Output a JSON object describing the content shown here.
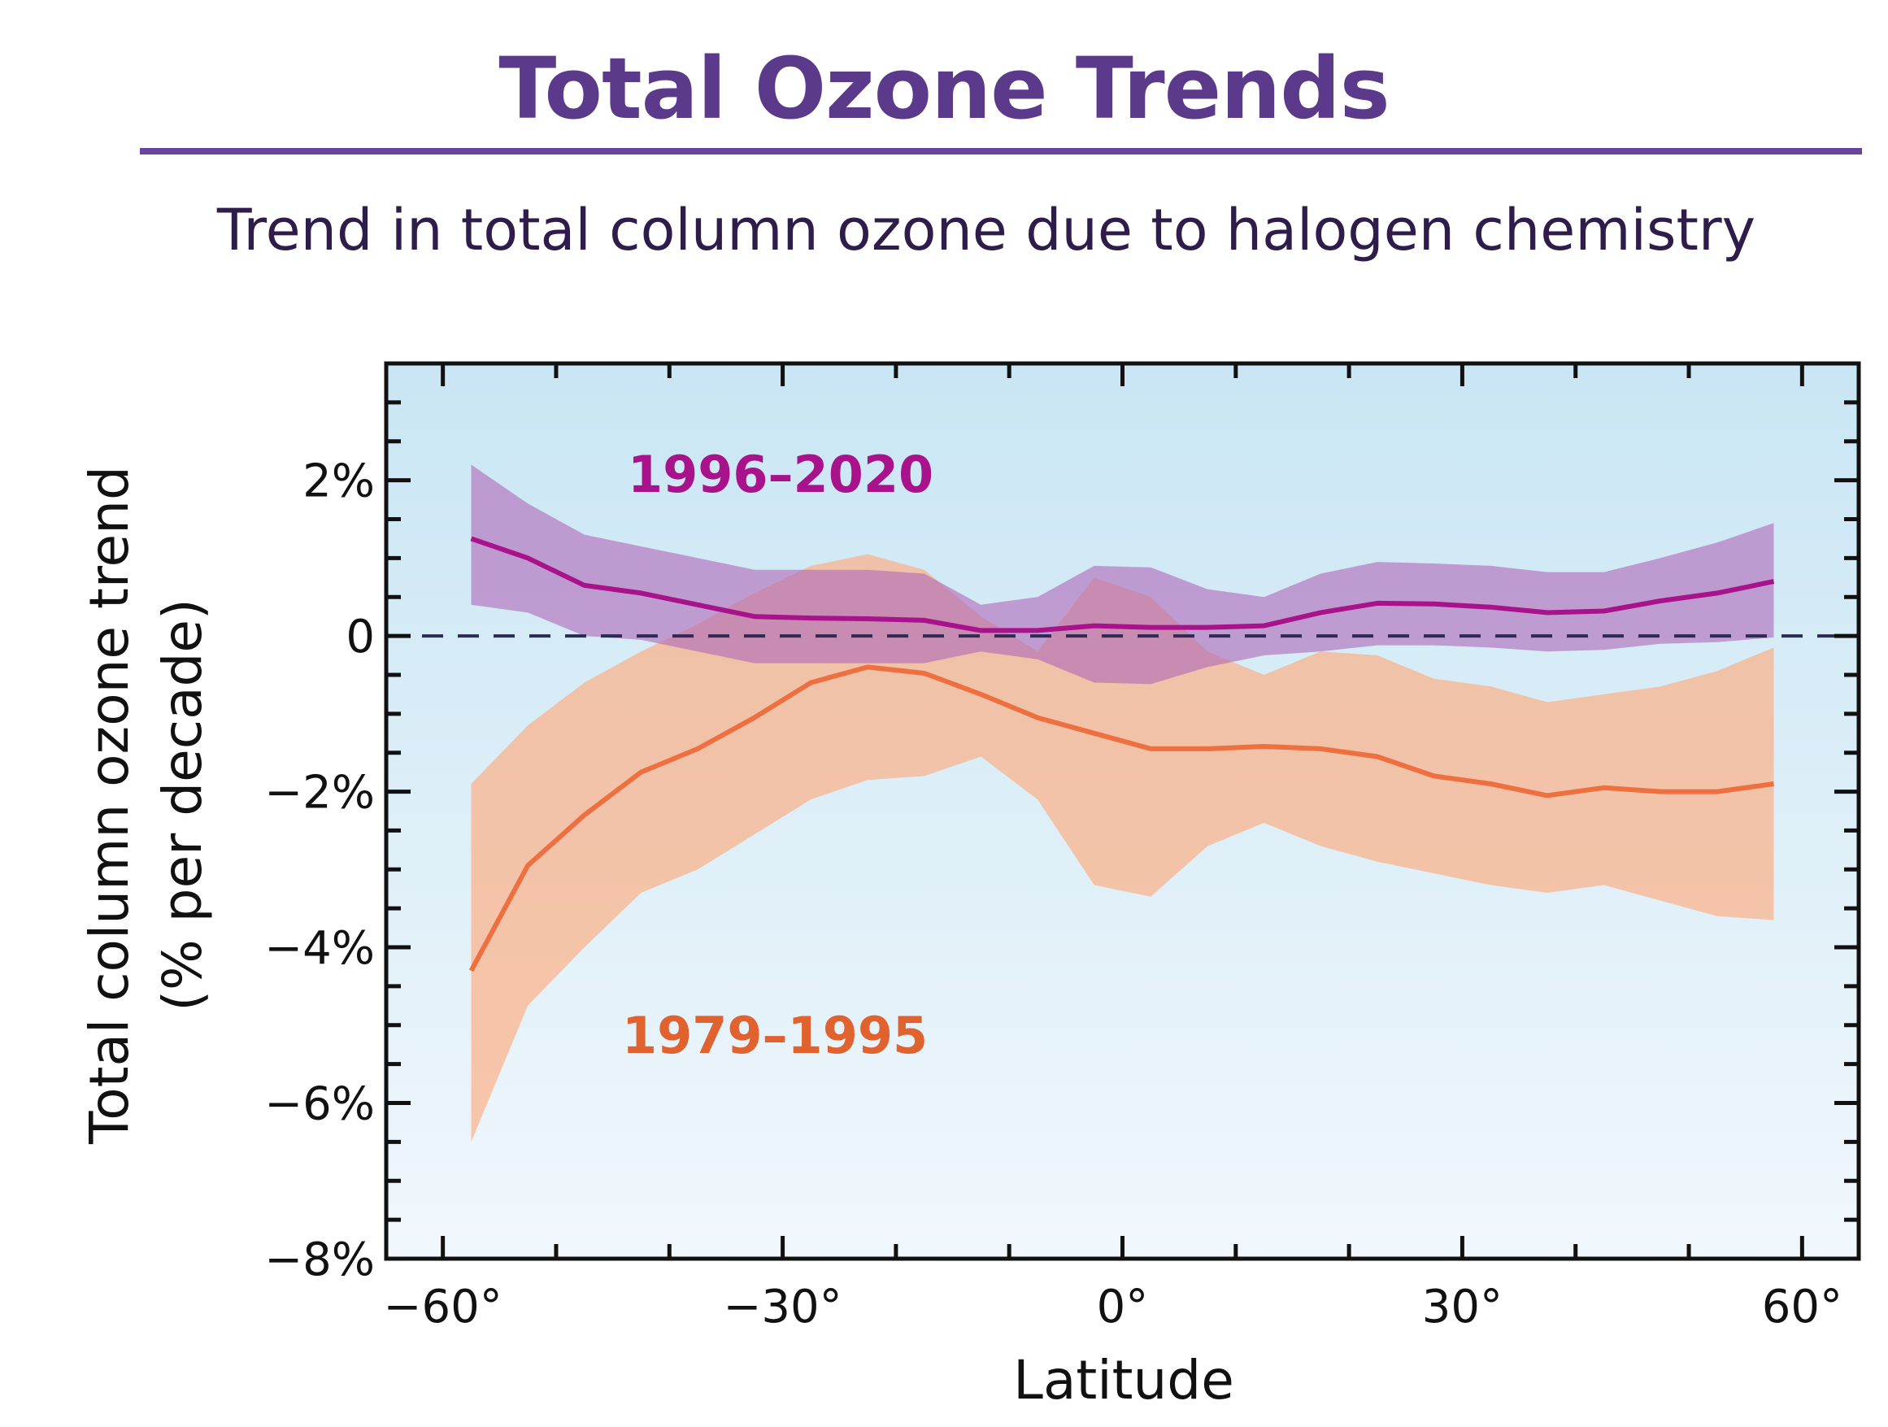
{
  "title": "Total Ozone Trends",
  "subtitle": "Trend in total column ozone due to halogen chemistry",
  "colors": {
    "title": "#5b3a8c",
    "series_1996_2020": "#a8128a",
    "band_1996_2020": "#b06ab8",
    "series_1979_1995": "#ee7040",
    "band_1979_1995": "#ffa877",
    "label_1979_1995": "#e0622e",
    "background_top": "#c9e6f4",
    "background_bottom": "#f1f7fc"
  },
  "chart_data": {
    "type": "line",
    "xlabel": "Latitude",
    "ylabel_line1": "Total column ozone trend",
    "ylabel_line2": "(% per decade)",
    "xlim": [
      -65,
      65
    ],
    "ylim": [
      -8,
      3.5
    ],
    "x_ticks": [
      -60,
      -30,
      0,
      30,
      60
    ],
    "x_tick_labels": [
      "−60°",
      "−30°",
      "0°",
      "30°",
      "60°"
    ],
    "y_ticks": [
      2,
      0,
      -2,
      -4,
      -6,
      -8
    ],
    "y_tick_labels": [
      "2%",
      "0",
      "−2%",
      "−4%",
      "−6%",
      "−8%"
    ],
    "zero_line": true,
    "grid": false,
    "series": [
      {
        "name": "1996–2020",
        "x": [
          -57.5,
          -52.5,
          -47.5,
          -42.5,
          -37.5,
          -32.5,
          -27.5,
          -22.5,
          -17.5,
          -12.5,
          -7.5,
          -2.5,
          2.5,
          7.5,
          12.5,
          17.5,
          22.5,
          27.5,
          32.5,
          37.5,
          42.5,
          47.5,
          52.5,
          57.5
        ],
        "y": [
          1.25,
          1.0,
          0.65,
          0.55,
          0.4,
          0.25,
          0.23,
          0.22,
          0.2,
          0.07,
          0.07,
          0.13,
          0.11,
          0.11,
          0.13,
          0.3,
          0.42,
          0.41,
          0.37,
          0.3,
          0.32,
          0.45,
          0.55,
          0.7
        ],
        "upper": [
          2.2,
          1.7,
          1.3,
          1.15,
          1.0,
          0.85,
          0.85,
          0.85,
          0.8,
          0.4,
          0.5,
          0.9,
          0.88,
          0.6,
          0.5,
          0.8,
          0.95,
          0.93,
          0.9,
          0.82,
          0.82,
          1.0,
          1.2,
          1.45
        ],
        "lower": [
          0.4,
          0.3,
          0.0,
          -0.05,
          -0.2,
          -0.35,
          -0.35,
          -0.35,
          -0.35,
          -0.2,
          -0.3,
          -0.6,
          -0.62,
          -0.4,
          -0.25,
          -0.2,
          -0.12,
          -0.12,
          -0.15,
          -0.2,
          -0.18,
          -0.1,
          -0.08,
          -0.02
        ]
      },
      {
        "name": "1979–1995",
        "x": [
          -57.5,
          -52.5,
          -47.5,
          -42.5,
          -37.5,
          -32.5,
          -27.5,
          -22.5,
          -17.5,
          -12.5,
          -7.5,
          -2.5,
          2.5,
          7.5,
          12.5,
          17.5,
          22.5,
          27.5,
          32.5,
          37.5,
          42.5,
          47.5,
          52.5,
          57.5
        ],
        "y": [
          -4.3,
          -2.95,
          -2.3,
          -1.75,
          -1.45,
          -1.05,
          -0.6,
          -0.4,
          -0.48,
          -0.75,
          -1.05,
          -1.25,
          -1.45,
          -1.45,
          -1.42,
          -1.45,
          -1.55,
          -1.8,
          -1.9,
          -2.05,
          -1.95,
          -2.0,
          -2.0,
          -1.9
        ],
        "upper": [
          -1.9,
          -1.15,
          -0.6,
          -0.2,
          0.15,
          0.55,
          0.9,
          1.05,
          0.85,
          0.25,
          -0.2,
          0.75,
          0.5,
          -0.2,
          -0.5,
          -0.2,
          -0.25,
          -0.55,
          -0.65,
          -0.85,
          -0.75,
          -0.65,
          -0.45,
          -0.15
        ],
        "lower": [
          -6.5,
          -4.75,
          -4.0,
          -3.3,
          -3.0,
          -2.55,
          -2.1,
          -1.85,
          -1.8,
          -1.55,
          -2.1,
          -3.2,
          -3.35,
          -2.7,
          -2.4,
          -2.7,
          -2.9,
          -3.05,
          -3.2,
          -3.3,
          -3.2,
          -3.4,
          -3.6,
          -3.65
        ]
      }
    ]
  }
}
